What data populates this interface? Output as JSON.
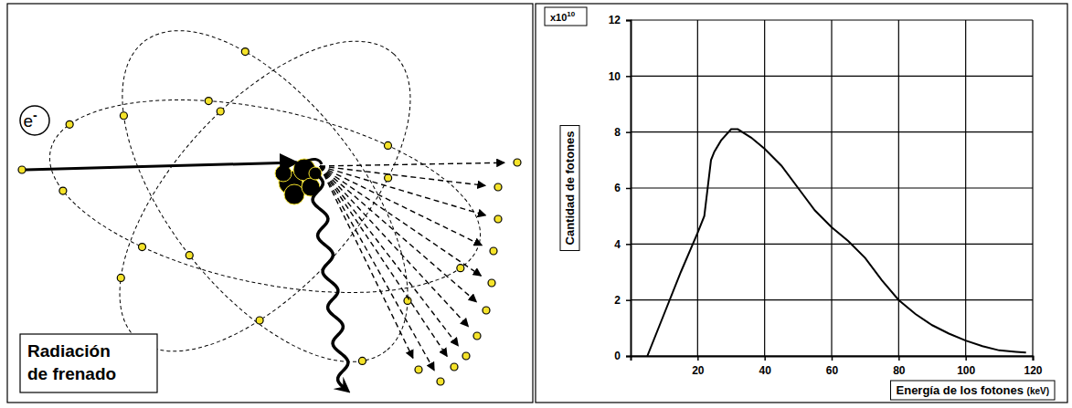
{
  "diagram": {
    "electron_label": "e",
    "electron_charge": "-",
    "caption": "Radiación de frenado"
  },
  "chart_data": {
    "type": "line",
    "x": [
      5,
      10,
      15,
      20,
      22,
      23,
      24,
      25,
      27,
      30,
      32,
      36,
      40,
      45,
      50,
      55,
      60,
      65,
      70,
      75,
      80,
      85,
      90,
      95,
      100,
      105,
      110,
      115,
      118
    ],
    "values": [
      0,
      1.5,
      3,
      4.4,
      5,
      6,
      7,
      7.3,
      7.7,
      8.1,
      8.1,
      7.8,
      7.4,
      6.8,
      6.0,
      5.2,
      4.6,
      4.1,
      3.5,
      2.7,
      2.0,
      1.5,
      1.1,
      0.8,
      0.55,
      0.35,
      0.2,
      0.15,
      0.12
    ],
    "color": "#000000",
    "xlim": [
      0,
      120
    ],
    "ylim": [
      0,
      12
    ],
    "xticks": [
      20,
      40,
      60,
      80,
      100,
      120
    ],
    "yticks": [
      0,
      2,
      4,
      6,
      8,
      10,
      12
    ],
    "grid": true,
    "xlabel": "Energía de los fotones (keV)",
    "ylabel": "Cantidad de fotones",
    "y_unit_label": "x10",
    "y_unit_exponent": "10"
  }
}
